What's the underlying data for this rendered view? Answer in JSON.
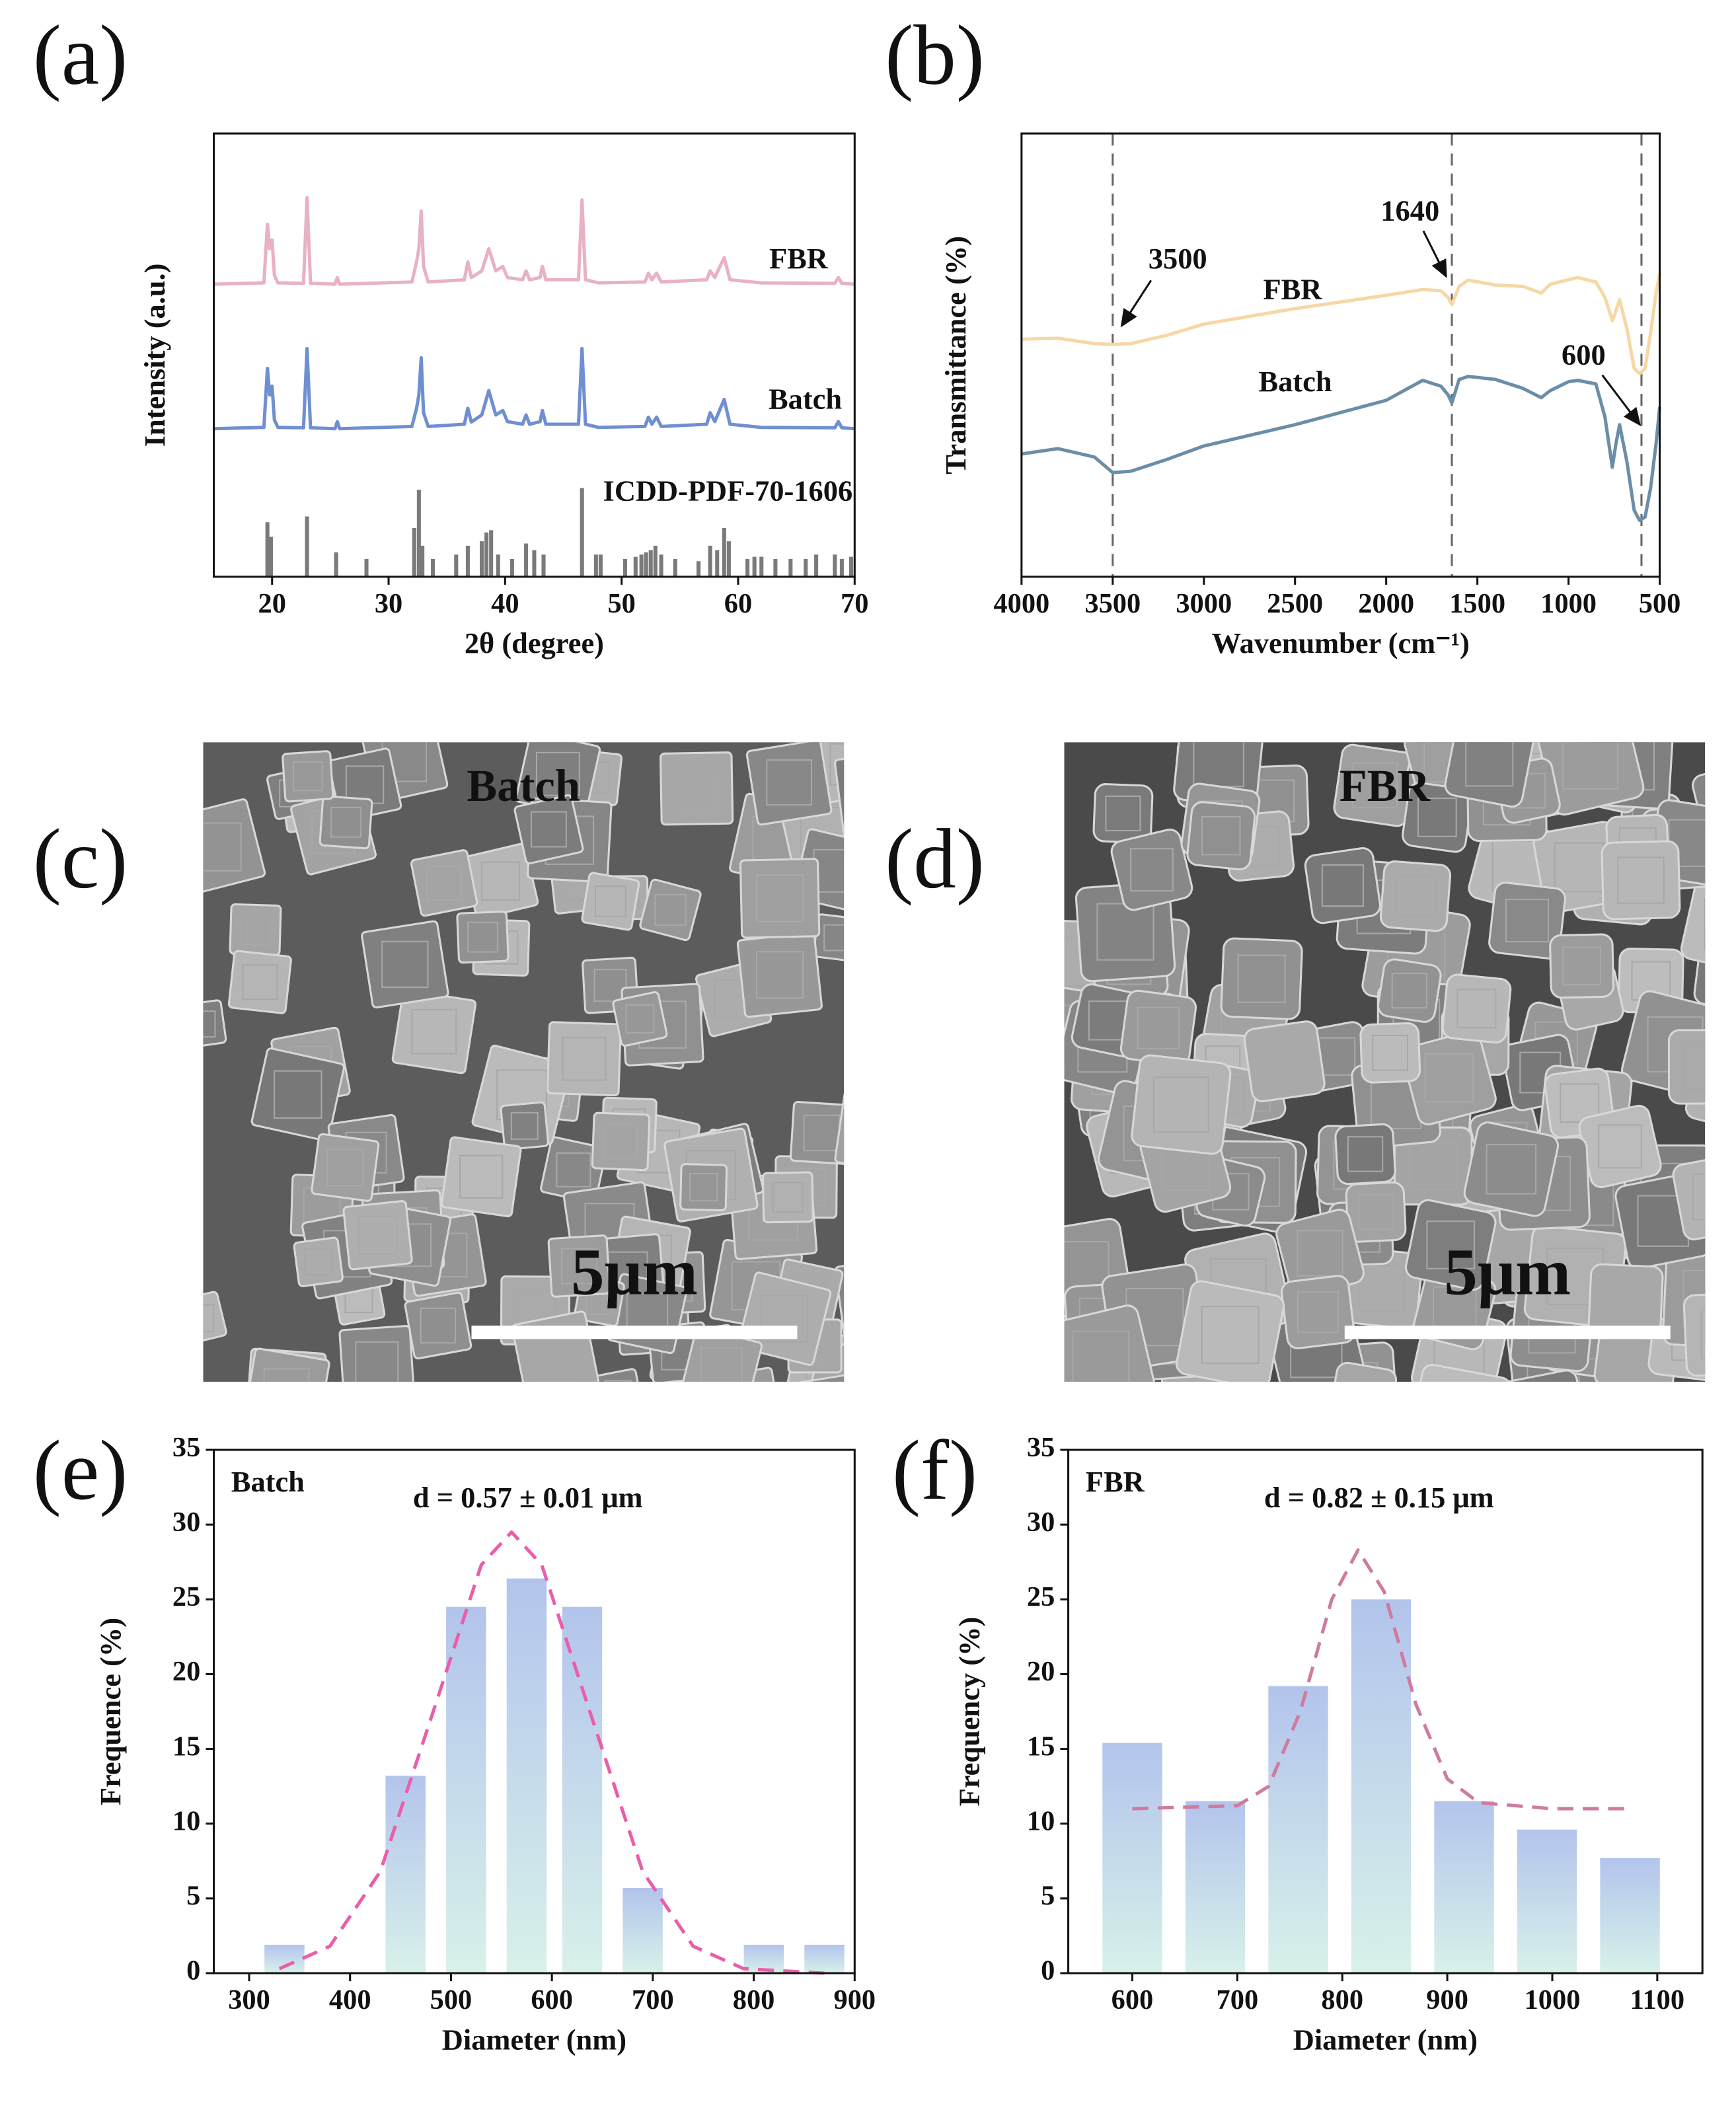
{
  "chart_data": [
    {
      "type": "line",
      "panel_label": "(a)",
      "x_label": "2θ (degree)",
      "y_label": "Intensity (a.u.)",
      "xlim": [
        15,
        70
      ],
      "xticks": [
        20,
        30,
        40,
        50,
        60,
        70
      ],
      "ylim": [
        0,
        100
      ],
      "series": [
        {
          "name": "FBR",
          "color": "#e8b2c3",
          "x": [
            15,
            19.3,
            19.6,
            19.8,
            20.0,
            20.2,
            20.5,
            22.7,
            23.0,
            23.3,
            25.4,
            25.6,
            25.8,
            32.0,
            32.4,
            32.6,
            32.8,
            33.0,
            33.4,
            36.5,
            36.8,
            37.1,
            38.0,
            38.6,
            39.2,
            39.8,
            40.2,
            41.5,
            41.8,
            42.1,
            43.0,
            43.2,
            43.5,
            46.3,
            46.6,
            46.9,
            48,
            52.0,
            52.3,
            52.6,
            53.0,
            53.4,
            57.3,
            57.6,
            58.0,
            58.8,
            59.3,
            62,
            68.3,
            68.6,
            68.9,
            70
          ],
          "values": [
            66,
            66.3,
            79.5,
            74,
            76,
            68,
            66.3,
            66.2,
            85.5,
            66.2,
            66,
            67.5,
            66,
            66.5,
            71,
            74,
            82.5,
            70,
            66.5,
            67,
            71,
            67.5,
            69,
            74,
            69,
            70,
            67.5,
            67,
            69,
            67,
            67.5,
            70,
            67,
            67,
            85,
            67,
            66.3,
            66.5,
            68.5,
            67,
            68.5,
            66.5,
            67,
            69,
            67.5,
            72,
            67,
            66.3,
            66.2,
            67.5,
            66.2,
            66
          ]
        },
        {
          "name": "Batch",
          "color": "#6f8fd2",
          "x": [
            15,
            19.3,
            19.6,
            19.8,
            20.0,
            20.2,
            20.5,
            22.7,
            23.0,
            23.3,
            25.4,
            25.6,
            25.8,
            32.0,
            32.4,
            32.6,
            32.8,
            33.0,
            33.4,
            36.5,
            36.8,
            37.1,
            38.0,
            38.6,
            39.2,
            39.8,
            40.2,
            41.5,
            41.8,
            42.1,
            43.0,
            43.2,
            43.5,
            46.3,
            46.6,
            46.9,
            48,
            52.0,
            52.3,
            52.6,
            53.0,
            53.4,
            57.3,
            57.6,
            58.0,
            58.8,
            59.3,
            62,
            68.3,
            68.6,
            68.9,
            70
          ],
          "values": [
            33.4,
            33.7,
            47,
            41,
            43,
            35.4,
            33.7,
            33.6,
            51.5,
            33.6,
            33.4,
            35,
            33.4,
            33.9,
            38,
            41,
            49.4,
            37,
            33.9,
            34.4,
            38,
            34.9,
            36.5,
            42,
            36.5,
            37.5,
            35,
            34.4,
            36.5,
            34.4,
            35,
            37.5,
            34.4,
            34.4,
            51.5,
            34.4,
            33.7,
            33.9,
            36,
            34.4,
            36,
            33.9,
            34.4,
            37,
            35,
            40,
            34.4,
            33.7,
            33.6,
            35,
            33.6,
            33.4
          ]
        },
        {
          "name": "ICDD-PDF-70-1606",
          "color": "#7a7a7a",
          "style": "stick",
          "x": [
            19.6,
            19.9,
            23.0,
            25.5,
            28.1,
            32.2,
            32.6,
            32.9,
            33.8,
            35.8,
            36.8,
            38.0,
            38.4,
            38.8,
            39.4,
            40.6,
            41.8,
            42.5,
            43.3,
            46.6,
            47.8,
            48.2,
            50.3,
            51.2,
            51.7,
            52.1,
            52.5,
            52.9,
            53.4,
            54.6,
            56.6,
            57.6,
            58.2,
            58.8,
            59.2,
            60.8,
            61.4,
            62.0,
            63.2,
            64.5,
            65.8,
            66.7,
            68.3,
            68.9,
            69.7
          ],
          "values": [
            12.3,
            9,
            13.6,
            5.5,
            4,
            11,
            19.6,
            7,
            4,
            5,
            7,
            8,
            10,
            10.5,
            5,
            4,
            7.5,
            6,
            5,
            20,
            5,
            5,
            4,
            4.5,
            5,
            5.5,
            6,
            7,
            5,
            4,
            3.5,
            7,
            6,
            11,
            8,
            4,
            4.5,
            4.5,
            4,
            4,
            4,
            5,
            5,
            4,
            4.5
          ]
        }
      ]
    },
    {
      "type": "line",
      "panel_label": "(b)",
      "x_label": "Wavenumber (cm⁻¹)",
      "y_label": "Transmittance (%)",
      "xlim": [
        4000,
        500
      ],
      "xticks": [
        4000,
        3500,
        3000,
        2500,
        2000,
        1500,
        1000,
        500
      ],
      "ylim": [
        0,
        100
      ],
      "vlines": [
        3500,
        1640,
        600
      ],
      "series": [
        {
          "name": "FBR",
          "color": "#f6d8a6",
          "x": [
            4000,
            3800,
            3600,
            3500,
            3400,
            3200,
            3000,
            2500,
            2000,
            1800,
            1700,
            1660,
            1640,
            1600,
            1550,
            1400,
            1250,
            1150,
            1100,
            1000,
            950,
            850,
            800,
            760,
            740,
            720,
            680,
            640,
            610,
            580,
            550,
            520,
            500
          ],
          "values": [
            53.6,
            53.8,
            52.6,
            52.4,
            52.6,
            54.5,
            57,
            60.5,
            63.5,
            64.8,
            64.5,
            63,
            61.4,
            65.5,
            66.9,
            65.8,
            65.5,
            64,
            66,
            67,
            67.5,
            66.5,
            63,
            57.8,
            60,
            62.5,
            56,
            47,
            45.8,
            47,
            55,
            64,
            68.4
          ]
        },
        {
          "name": "Batch",
          "color": "#6b8ea8",
          "x": [
            4000,
            3800,
            3600,
            3500,
            3400,
            3200,
            3000,
            2500,
            2000,
            1800,
            1700,
            1660,
            1640,
            1600,
            1550,
            1400,
            1250,
            1150,
            1100,
            1000,
            950,
            850,
            800,
            760,
            740,
            720,
            680,
            640,
            610,
            580,
            550,
            520,
            500
          ],
          "values": [
            27.7,
            28.9,
            27,
            23.5,
            23.8,
            26.5,
            29.5,
            34.3,
            39.8,
            44.3,
            43,
            41,
            39.2,
            44.5,
            45.2,
            44.5,
            42.5,
            40.4,
            42,
            44,
            44.3,
            43.5,
            36,
            24.7,
            30,
            34.3,
            26,
            15,
            12.7,
            13.5,
            20,
            30,
            38.3
          ]
        }
      ]
    },
    {
      "type": "bar",
      "panel_label": "(e)",
      "label": "Batch",
      "annotation": "d = 0.57 ± 0.01 μm",
      "x_label": "Diameter (nm)",
      "y_label": "Frequence (%)",
      "xlim": [
        265,
        900
      ],
      "xticks": [
        300,
        400,
        500,
        600,
        700,
        800,
        900
      ],
      "ylim": [
        0,
        35
      ],
      "yticks": [
        0,
        5,
        10,
        15,
        20,
        25,
        30,
        35
      ],
      "x": [
        335,
        455,
        515,
        575,
        630,
        690,
        810,
        870
      ],
      "values": [
        1.9,
        13.2,
        24.5,
        26.4,
        24.5,
        5.7,
        1.9,
        1.9
      ],
      "color": "#b3c4ec",
      "fit": {
        "color": "#ea5ea9",
        "x": [
          330,
          380,
          430,
          480,
          530,
          560,
          590,
          640,
          690,
          740,
          790,
          870
        ],
        "values": [
          0.3,
          1.8,
          6.8,
          17.0,
          27.3,
          29.5,
          27.3,
          17.0,
          6.8,
          1.8,
          0.3,
          0
        ]
      }
    },
    {
      "type": "bar",
      "panel_label": "(f)",
      "label": "FBR",
      "annotation": "d = 0.82 ± 0.15 μm",
      "x_label": "Diameter (nm)",
      "y_label": "Frequency (%)",
      "xlim": [
        539,
        1143
      ],
      "xticks": [
        600,
        700,
        800,
        900,
        1000,
        1100
      ],
      "ylim": [
        0,
        35
      ],
      "yticks": [
        0,
        5,
        10,
        15,
        20,
        25,
        30,
        35
      ],
      "x": [
        600,
        679,
        758,
        837,
        916,
        995,
        1074
      ],
      "values": [
        15.4,
        11.5,
        19.2,
        25,
        11.5,
        9.6,
        7.7
      ],
      "color": "#b3c4ec",
      "fit": {
        "color": "#cf7aa0",
        "x": [
          600,
          700,
          730,
          760,
          790,
          815,
          840,
          870,
          900,
          930,
          1000,
          1075
        ],
        "values": [
          11,
          11.2,
          12.5,
          17.5,
          25,
          28.3,
          25.5,
          18,
          13,
          11.4,
          11,
          11
        ]
      }
    }
  ],
  "images": [
    {
      "panel_label": "(c)",
      "label": "Batch",
      "scale_bar": "5μm"
    },
    {
      "panel_label": "(d)",
      "label": "FBR",
      "scale_bar": "5μm"
    }
  ]
}
